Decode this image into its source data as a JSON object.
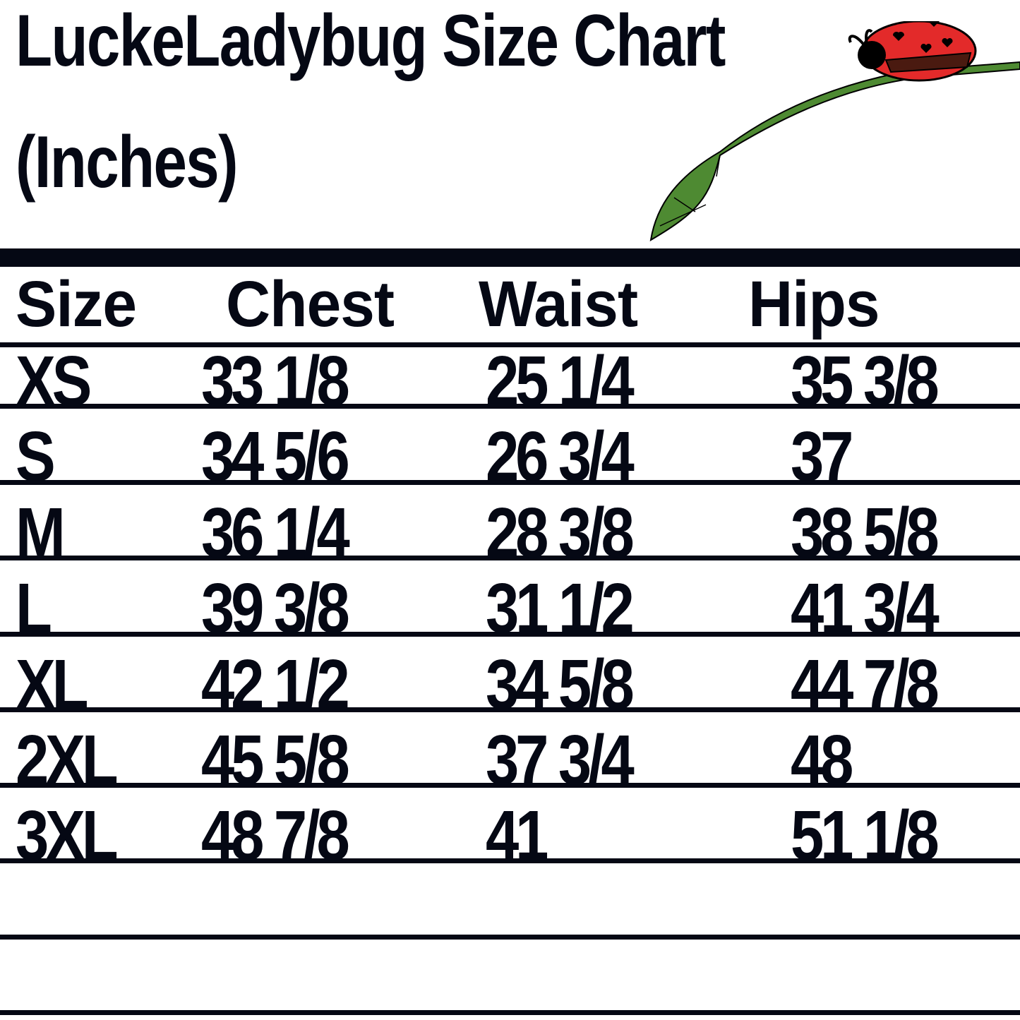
{
  "title_line1": "LuckeLadybug Size Chart",
  "title_line2": "(Inches)",
  "headers": [
    "Size",
    "Chest",
    "Waist",
    "Hips"
  ],
  "rows": [
    {
      "size": "XS",
      "chest": "33 1/8",
      "waist": "25 1/4",
      "hips": "35 3/8"
    },
    {
      "size": "S",
      "chest": "34 5/6",
      "waist": "26 3/4",
      "hips": "37"
    },
    {
      "size": "M",
      "chest": "36 1/4",
      "waist": "28 3/8",
      "hips": "38 5/8"
    },
    {
      "size": "L",
      "chest": "39 3/8",
      "waist": "31 1/2",
      "hips": "41 3/4"
    },
    {
      "size": "XL",
      "chest": "42 1/2",
      "waist": "34 5/8",
      "hips": "44 7/8"
    },
    {
      "size": "2XL",
      "chest": "45 5/8",
      "waist": "37 3/4",
      "hips": "48"
    },
    {
      "size": "3XL",
      "chest": "48 7/8",
      "waist": "41",
      "hips": "51 1/8"
    }
  ],
  "colors": {
    "text": "#050814",
    "ladybug": "#e32a2a",
    "leaf": "#4e8a32"
  }
}
